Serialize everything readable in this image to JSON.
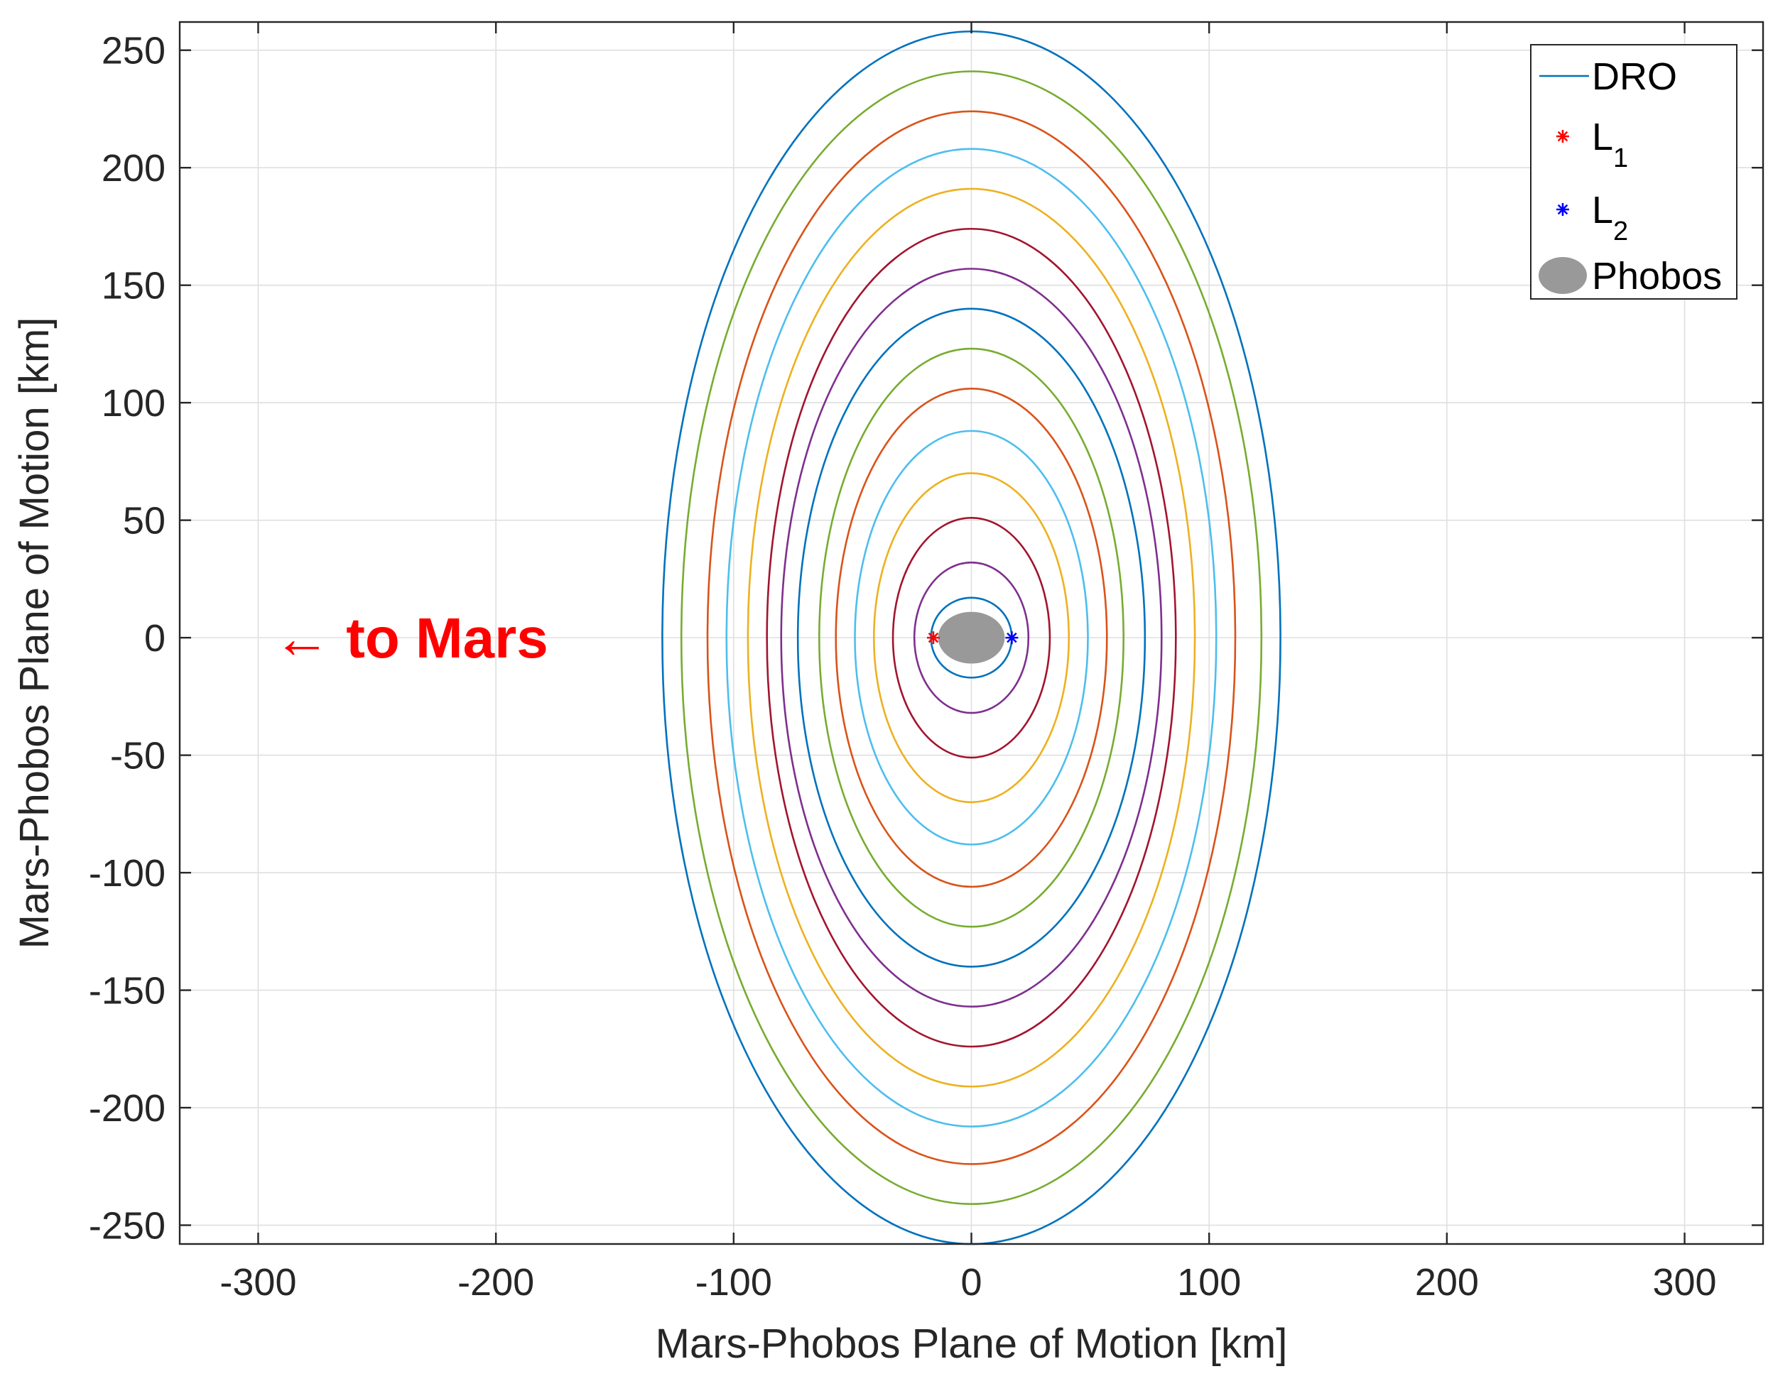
{
  "chart_data": {
    "type": "line",
    "title": "",
    "xlabel": "Mars-Phobos Plane of Motion [km]",
    "ylabel": "Mars-Phobos Plane of Motion [km]",
    "xlim": [
      -333,
      333
    ],
    "ylim": [
      -258,
      262
    ],
    "xticks": [
      -300,
      -200,
      -100,
      0,
      100,
      200,
      300
    ],
    "yticks": [
      -250,
      -200,
      -150,
      -100,
      -50,
      0,
      50,
      100,
      150,
      200,
      250
    ],
    "grid": true,
    "legend_position": "top-right",
    "legend": [
      {
        "label": "DRO",
        "kind": "line",
        "color": "#0072BD"
      },
      {
        "label": "L",
        "sub": "1",
        "kind": "star",
        "color": "#FF0000"
      },
      {
        "label": "L",
        "sub": "2",
        "kind": "star",
        "color": "#0000FF"
      },
      {
        "label": "Phobos",
        "kind": "ellipse",
        "color": "#999999"
      }
    ],
    "orbits": [
      {
        "a": 17,
        "b": 17,
        "color": "#0072BD"
      },
      {
        "a": 24,
        "b": 32,
        "color": "#7E2F8E"
      },
      {
        "a": 33,
        "b": 51,
        "color": "#A2142F"
      },
      {
        "a": 41,
        "b": 70,
        "color": "#EDB120"
      },
      {
        "a": 49,
        "b": 88,
        "color": "#4DBEEE"
      },
      {
        "a": 57,
        "b": 106,
        "color": "#D95319"
      },
      {
        "a": 64,
        "b": 123,
        "color": "#77AC30"
      },
      {
        "a": 73,
        "b": 140,
        "color": "#0072BD"
      },
      {
        "a": 80,
        "b": 157,
        "color": "#7E2F8E"
      },
      {
        "a": 86,
        "b": 174,
        "color": "#A2142F"
      },
      {
        "a": 94,
        "b": 191,
        "color": "#EDB120"
      },
      {
        "a": 103,
        "b": 208,
        "color": "#4DBEEE"
      },
      {
        "a": 111,
        "b": 224,
        "color": "#D95319"
      },
      {
        "a": 122,
        "b": 241,
        "color": "#77AC30"
      },
      {
        "a": 130,
        "b": 258,
        "color": "#0072BD"
      }
    ],
    "points": [
      {
        "name": "L1",
        "x": -16,
        "y": 0,
        "color": "#FF0000"
      },
      {
        "name": "L2",
        "x": 17,
        "y": 0,
        "color": "#0000FF"
      }
    ],
    "body": {
      "name": "Phobos",
      "cx": 0,
      "cy": 0,
      "rx": 14,
      "ry": 11,
      "color": "#999999"
    },
    "annotation": {
      "text": "← to Mars",
      "x": -290,
      "y": 0,
      "color": "#FF0000"
    }
  }
}
